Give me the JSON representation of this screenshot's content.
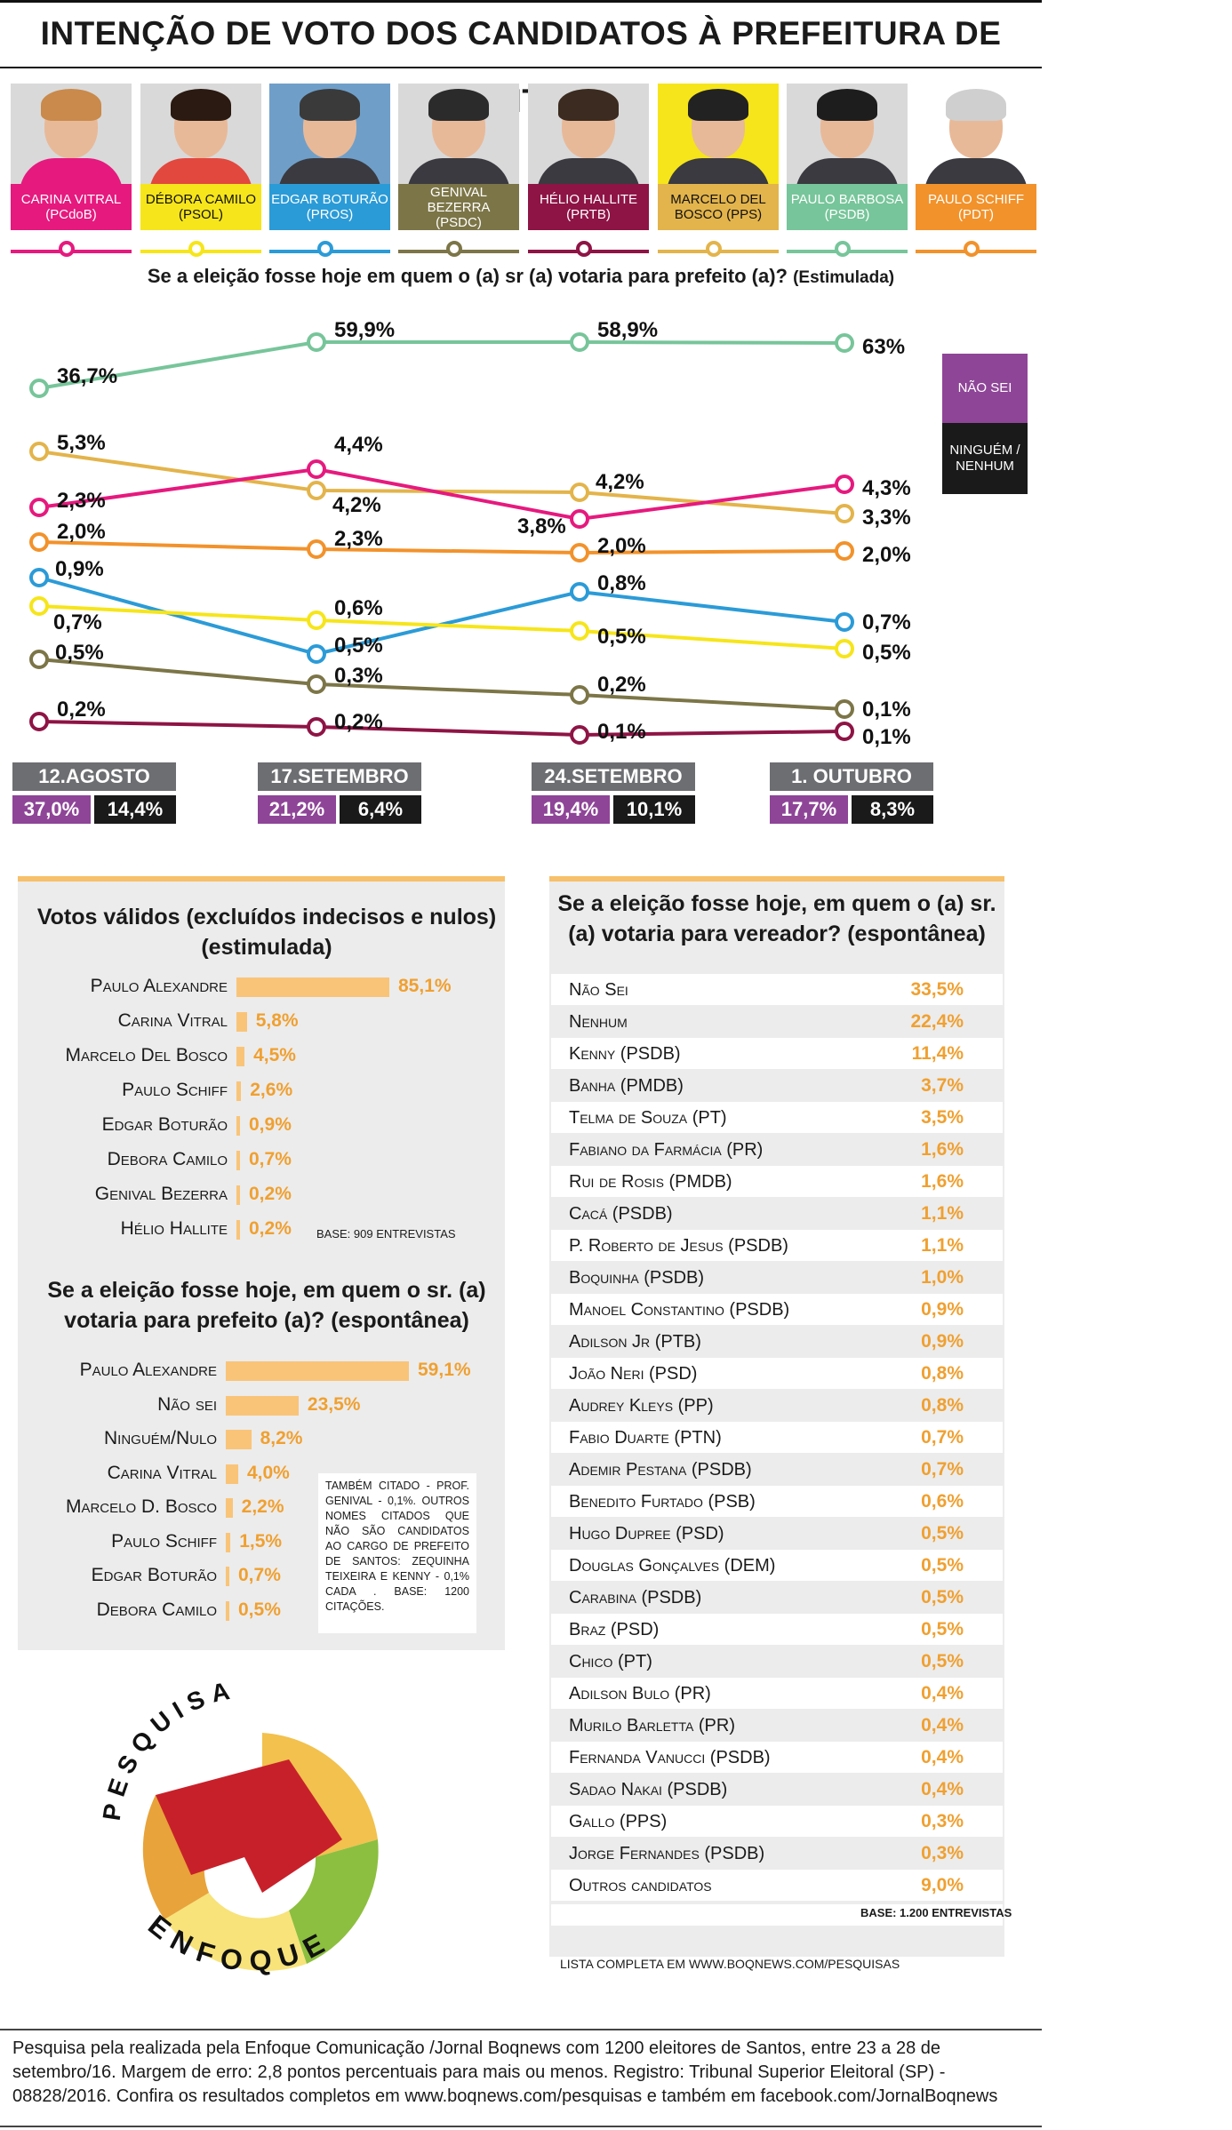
{
  "title": "INTENÇÃO DE VOTO DOS CANDIDATOS À PREFEITURA DE SANTOS",
  "candidates": [
    {
      "name": "CARINA VITRAL",
      "party": "(PCdoB)",
      "color": "#e6197e"
    },
    {
      "name": "DÉBORA CAMILO",
      "party": "(PSOL)",
      "color": "#f6e51a"
    },
    {
      "name": "EDGAR BOTURÃO",
      "party": "(PROS)",
      "color": "#2b9bd7"
    },
    {
      "name": "GENIVAL BEZERRA",
      "party": "(PSDC)",
      "color": "#7c7547"
    },
    {
      "name": "HÉLIO HALLITE",
      "party": "(PRTB)",
      "color": "#8e1445"
    },
    {
      "name": "MARCELO DEL BOSCO (PPS)",
      "party": "",
      "color": "#e3b44b"
    },
    {
      "name": "PAULO BARBOSA",
      "party": "(PSDB)",
      "color": "#77c59a"
    },
    {
      "name": "PAULO SCHIFF",
      "party": "(PDT)",
      "color": "#f2922b"
    }
  ],
  "question_main": "Se a eleição fosse hoje em quem o (a) sr (a) votaria para prefeito (a)?",
  "question_note": "(Estimulada)",
  "legend": {
    "nao_sei": "NÃO SEI",
    "ninguem": "NINGUÉM / NENHUM",
    "nao_sei_color": "#8e4597",
    "ninguem_color": "#1a1a1a"
  },
  "chart_data": [
    {
      "type": "line",
      "x": [
        "12.AGOSTO",
        "17.SETEMBRO",
        "24.SETEMBRO",
        "1. OUTUBRO"
      ],
      "series": [
        {
          "name": "PAULO BARBOSA",
          "values": [
            36.7,
            59.9,
            58.9,
            63
          ],
          "labels": [
            "36,7%",
            "59,9%",
            "58,9%",
            "63%"
          ],
          "color": "#77c59a"
        },
        {
          "name": "MARCELO DEL BOSCO",
          "values": [
            5.3,
            4.2,
            4.2,
            3.3
          ],
          "labels": [
            "5,3%",
            "4,2%",
            "4,2%",
            "3,3%"
          ],
          "color": "#e3b44b"
        },
        {
          "name": "CARINA VITRAL",
          "values": [
            2.3,
            4.4,
            3.8,
            4.3
          ],
          "labels": [
            "2,3%",
            "4,4%",
            "3,8%",
            "4,3%"
          ],
          "color": "#e6197e"
        },
        {
          "name": "PAULO SCHIFF",
          "values": [
            2.0,
            2.3,
            2.0,
            2.0
          ],
          "labels": [
            "2,0%",
            "2,3%",
            "2,0%",
            "2,0%"
          ],
          "color": "#f2922b"
        },
        {
          "name": "EDGAR BOTURÃO",
          "values": [
            0.9,
            0.5,
            0.8,
            0.7
          ],
          "labels": [
            "0,9%",
            "0,5%",
            "0,8%",
            "0,7%"
          ],
          "color": "#2b9bd7"
        },
        {
          "name": "DÉBORA CAMILO",
          "values": [
            0.7,
            0.6,
            0.5,
            0.5
          ],
          "labels": [
            "0,7%",
            "0,6%",
            "0,5%",
            "0,5%"
          ],
          "color": "#f6e51a"
        },
        {
          "name": "GENIVAL BEZERRA",
          "values": [
            0.5,
            0.3,
            0.2,
            0.1
          ],
          "labels": [
            "0,5%",
            "0,3%",
            "0,2%",
            "0,1%"
          ],
          "color": "#7c7547"
        },
        {
          "name": "HÉLIO HALLITE",
          "values": [
            0.2,
            0.2,
            0.1,
            0.1
          ],
          "labels": [
            "0,2%",
            "0,2%",
            "0,1%",
            "0,1%"
          ],
          "color": "#8e1445"
        }
      ],
      "nao_sei": {
        "values": [
          37.0,
          21.2,
          19.4,
          17.7
        ],
        "labels": [
          "37,0%",
          "21,2%",
          "19,4%",
          "17,7%"
        ]
      },
      "ninguem_nenhum": {
        "values": [
          14.4,
          6.4,
          10.1,
          8.3
        ],
        "labels": [
          "14,4%",
          "6,4%",
          "10,1%",
          "8,3%"
        ]
      }
    },
    {
      "type": "bar",
      "title": "Votos válidos (excluídos indecisos e nulos)",
      "subtitle": "(estimulada)",
      "categories": [
        "Paulo Alexandre",
        "Carina Vitral",
        "Marcelo Del Bosco",
        "Paulo Schiff",
        "Edgar Boturão",
        "Debora Camilo",
        "Genival Bezerra",
        "Hélio Hallite"
      ],
      "values": [
        85.1,
        5.8,
        4.5,
        2.6,
        0.9,
        0.7,
        0.2,
        0.2
      ],
      "labels": [
        "85,1%",
        "5,8%",
        "4,5%",
        "2,6%",
        "0,9%",
        "0,7%",
        "0,2%",
        "0,2%"
      ],
      "note": "BASE: 909 ENTREVISTAS"
    },
    {
      "type": "bar",
      "title": "Se a eleição fosse hoje, em quem o sr. (a) votaria para prefeito (a)? (espontânea)",
      "categories": [
        "Paulo Alexandre",
        "Não sei",
        "Ninguém/Nulo",
        "Carina Vitral",
        "Marcelo D. Bosco",
        "Paulo Schiff",
        "Edgar Boturão",
        "Debora Camilo"
      ],
      "values": [
        59.1,
        23.5,
        8.2,
        4.0,
        2.2,
        1.5,
        0.7,
        0.5
      ],
      "labels": [
        "59,1%",
        "23,5%",
        "8,2%",
        "4,0%",
        "2,2%",
        "1,5%",
        "0,7%",
        "0,5%"
      ],
      "note": "TAMBÉM CITADO - PROF. GENIVAL - 0,1%. OUTROS NOMES CITADOS QUE NÃO SÃO CANDIDATOS AO CARGO DE PREFEITO DE SANTOS: ZEQUINHA TEIXEIRA E KENNY - 0,1% CADA . BASE: 1200 CITAÇÕES."
    },
    {
      "type": "table",
      "title": "Se a eleição fosse hoje, em quem o (a) sr. (a) votaria para vereador? (espontânea)",
      "rows": [
        [
          "Não Sei",
          "33,5%"
        ],
        [
          "Nenhum",
          "22,4%"
        ],
        [
          "Kenny (PSDB)",
          "11,4%"
        ],
        [
          "Banha (PMDB)",
          "3,7%"
        ],
        [
          "Telma de Souza (PT)",
          "3,5%"
        ],
        [
          "Fabiano da Farmácia (PR)",
          "1,6%"
        ],
        [
          "Rui de Rosis (PMDB)",
          "1,6%"
        ],
        [
          "Cacá (PSDB)",
          "1,1%"
        ],
        [
          "P. Roberto de Jesus (PSDB)",
          "1,1%"
        ],
        [
          "Boquinha (PSDB)",
          "1,0%"
        ],
        [
          "Manoel Constantino (PSDB)",
          "0,9%"
        ],
        [
          "Adilson Jr (PTB)",
          "0,9%"
        ],
        [
          "João Neri (PSD)",
          "0,8%"
        ],
        [
          "Audrey Kleys (PP)",
          "0,8%"
        ],
        [
          "Fabio Duarte (PTN)",
          "0,7%"
        ],
        [
          "Ademir Pestana (PSDB)",
          "0,7%"
        ],
        [
          "Benedito Furtado (PSB)",
          "0,6%"
        ],
        [
          "Hugo Dupree (PSD)",
          "0,5%"
        ],
        [
          "Douglas Gonçalves (DEM)",
          "0,5%"
        ],
        [
          "Carabina (PSDB)",
          "0,5%"
        ],
        [
          "Braz (PSD)",
          "0,5%"
        ],
        [
          "Chico (PT)",
          "0,5%"
        ],
        [
          "Adilson Bulo (PR)",
          "0,4%"
        ],
        [
          "Murilo Barletta (PR)",
          "0,4%"
        ],
        [
          "Fernanda Vanucci (PSDB)",
          "0,4%"
        ],
        [
          "Sadao Nakai (PSDB)",
          "0,4%"
        ],
        [
          "Gallo (PPS)",
          "0,3%"
        ],
        [
          "Jorge Fernandes (PSDB)",
          "0,3%"
        ],
        [
          "Outros candidatos",
          "9,0%"
        ]
      ],
      "note": "BASE: 1.200 ENTREVISTAS",
      "footer": "LISTA COMPLETA EM WWW.BOQNEWS.COM/PESQUISAS"
    }
  ],
  "logo": {
    "top": "PESQUISA",
    "bottom": "ENFOQUE"
  },
  "footer_text": "Pesquisa pela realizada pela Enfoque Comunicação /Jornal Boqnews com 1200 eleitores de Santos, entre 23 a 28  de setembro/16.  Margem de erro: 2,8 pontos percentuais para mais ou menos. Registro: Tribunal Superior Eleitoral (SP) - 08828/2016.  Confira os resultados completos em www.boqnews.com/pesquisas e também em facebook.com/JornalBoqnews"
}
